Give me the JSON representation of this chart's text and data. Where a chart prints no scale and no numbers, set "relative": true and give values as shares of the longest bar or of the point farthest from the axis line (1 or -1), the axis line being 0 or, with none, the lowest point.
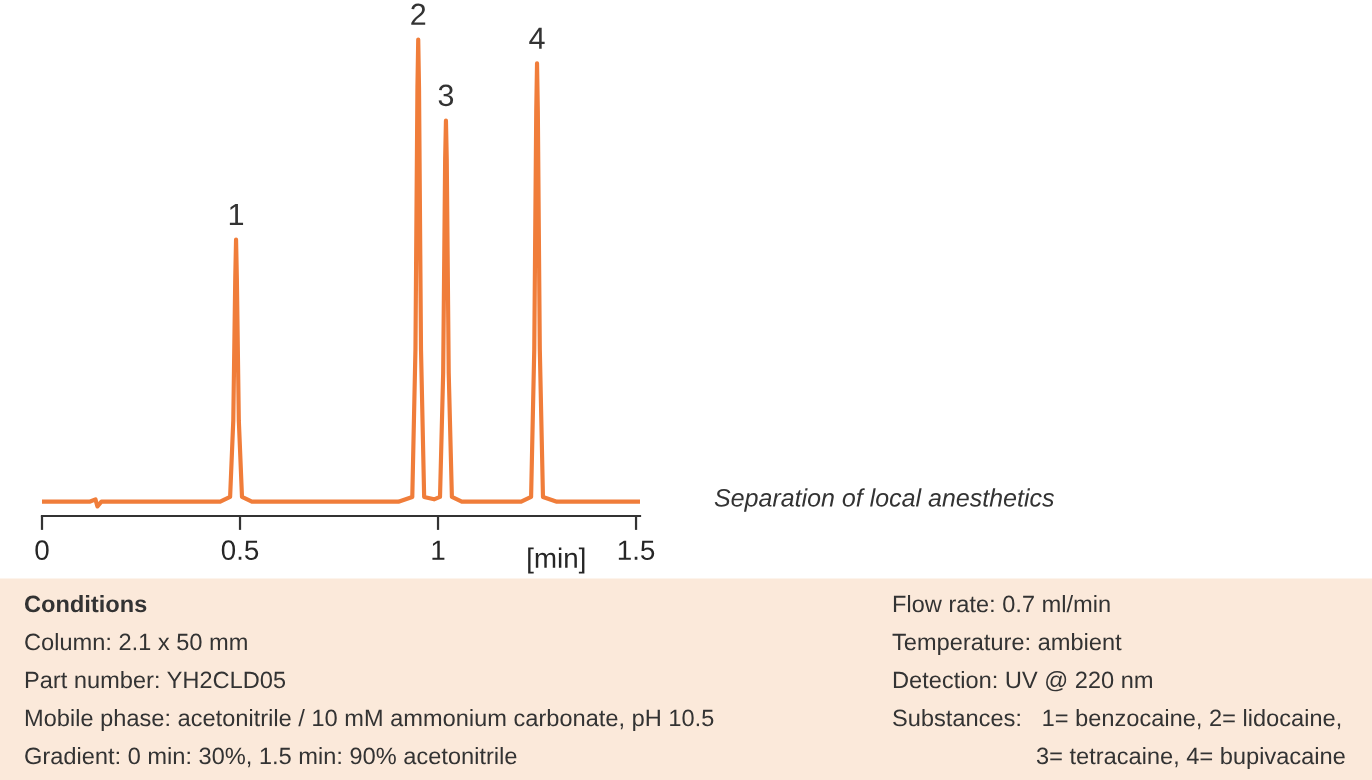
{
  "chart_data": {
    "type": "line",
    "relative": true,
    "xlabel": "[min]",
    "xlim": [
      0,
      1.51
    ],
    "xticks": [
      0,
      0.5,
      1,
      1.5
    ],
    "grid": false,
    "legend": false,
    "marker": "none",
    "line_style": "solid",
    "series": [
      {
        "color": "#f07d3a",
        "x": [
          0,
          0.12,
          0.135,
          0.14,
          0.15,
          0.16,
          0.2,
          0.45,
          0.475,
          0.483,
          0.488,
          0.49,
          0.492,
          0.497,
          0.505,
          0.53,
          0.9,
          0.935,
          0.943,
          0.948,
          0.95,
          0.952,
          0.957,
          0.965,
          0.99,
          1.005,
          1.013,
          1.018,
          1.02,
          1.022,
          1.027,
          1.035,
          1.06,
          1.21,
          1.235,
          1.243,
          1.248,
          1.25,
          1.252,
          1.257,
          1.265,
          1.3,
          1.51
        ],
        "values": [
          0.03,
          0.03,
          0.035,
          0.02,
          0.03,
          0.03,
          0.03,
          0.03,
          0.04,
          0.2,
          0.5,
          0.58,
          0.5,
          0.2,
          0.04,
          0.03,
          0.03,
          0.04,
          0.35,
          0.9,
          1,
          0.9,
          0.35,
          0.04,
          0.035,
          0.04,
          0.3,
          0.75,
          0.83,
          0.75,
          0.3,
          0.04,
          0.03,
          0.03,
          0.04,
          0.35,
          0.85,
          0.95,
          0.85,
          0.35,
          0.04,
          0.03,
          0.03
        ]
      }
    ],
    "annotations": [
      {
        "text": "1",
        "x": 0.49,
        "y": 0.58
      },
      {
        "text": "2",
        "x": 0.95,
        "y": 1
      },
      {
        "text": "3",
        "x": 1.02,
        "y": 0.83
      },
      {
        "text": "4",
        "x": 1.25,
        "y": 0.95
      },
      "Separation of local anesthetics",
      "Conditions",
      "Column: 2.1 x 50 mm",
      "Part number: YH2CLD05",
      "Mobile phase: acetonitrile / 10 mM ammonium carbonate, pH 10.5",
      "Gradient: 0 min: 30%, 1.5 min: 90% acetonitrile",
      "Flow rate: 0.7 ml/min",
      "Temperature: ambient",
      "Detection: UV @ 220 nm",
      "Substances:   1= benzocaine, 2= lidocaine,",
      "3= tetracaine, 4= bupivacaine"
    ]
  }
}
